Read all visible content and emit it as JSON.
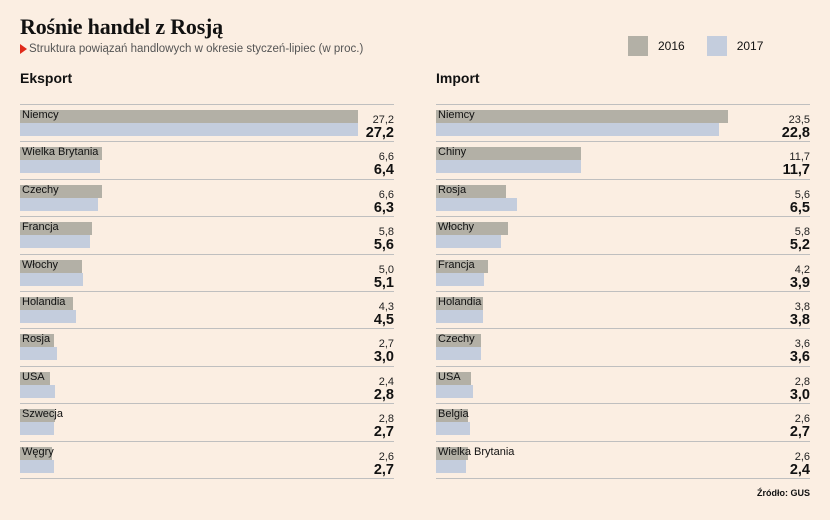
{
  "title": "Rośnie handel z Rosją",
  "subtitle": "Struktura powiązań handlowych w okresie styczeń-lipiec (w proc.)",
  "legend": [
    {
      "label": "2016",
      "color": "#b3b0a6"
    },
    {
      "label": "2017",
      "color": "#c4cddd"
    }
  ],
  "source": "Źródło: GUS",
  "chart_data": [
    {
      "type": "bar",
      "title": "Eksport",
      "categories": [
        "Niemcy",
        "Wielka Brytania",
        "Czechy",
        "Francja",
        "Włochy",
        "Holandia",
        "Rosja",
        "USA",
        "Szwecja",
        "Węgry"
      ],
      "series": [
        {
          "name": "2016",
          "values": [
            27.2,
            6.6,
            6.6,
            5.8,
            5.0,
            4.3,
            2.7,
            2.4,
            2.8,
            2.6
          ],
          "labels": [
            "27,2",
            "6,6",
            "6,6",
            "5,8",
            "5,0",
            "4,3",
            "2,7",
            "2,4",
            "2,8",
            "2,6"
          ]
        },
        {
          "name": "2017",
          "values": [
            27.2,
            6.4,
            6.3,
            5.6,
            5.1,
            4.5,
            3.0,
            2.8,
            2.7,
            2.7
          ],
          "labels": [
            "27,2",
            "6,4",
            "6,3",
            "5,6",
            "5,1",
            "4,5",
            "3,0",
            "2,8",
            "2,7",
            "2,7"
          ]
        }
      ],
      "xlim": [
        0,
        27.2
      ]
    },
    {
      "type": "bar",
      "title": "Import",
      "categories": [
        "Niemcy",
        "Chiny",
        "Rosja",
        "Włochy",
        "Francja",
        "Holandia",
        "Czechy",
        "USA",
        "Belgia",
        "Wielka Brytania"
      ],
      "series": [
        {
          "name": "2016",
          "values": [
            23.5,
            11.7,
            5.6,
            5.8,
            4.2,
            3.8,
            3.6,
            2.8,
            2.6,
            2.6
          ],
          "labels": [
            "23,5",
            "11,7",
            "5,6",
            "5,8",
            "4,2",
            "3,8",
            "3,6",
            "2,8",
            "2,6",
            "2,6"
          ]
        },
        {
          "name": "2017",
          "values": [
            22.8,
            11.7,
            6.5,
            5.2,
            3.9,
            3.8,
            3.6,
            3.0,
            2.7,
            2.4
          ],
          "labels": [
            "22,8",
            "11,7",
            "6,5",
            "5,2",
            "3,9",
            "3,8",
            "3,6",
            "3,0",
            "2,7",
            "2,4"
          ]
        }
      ],
      "xlim": [
        0,
        23.5
      ]
    }
  ]
}
